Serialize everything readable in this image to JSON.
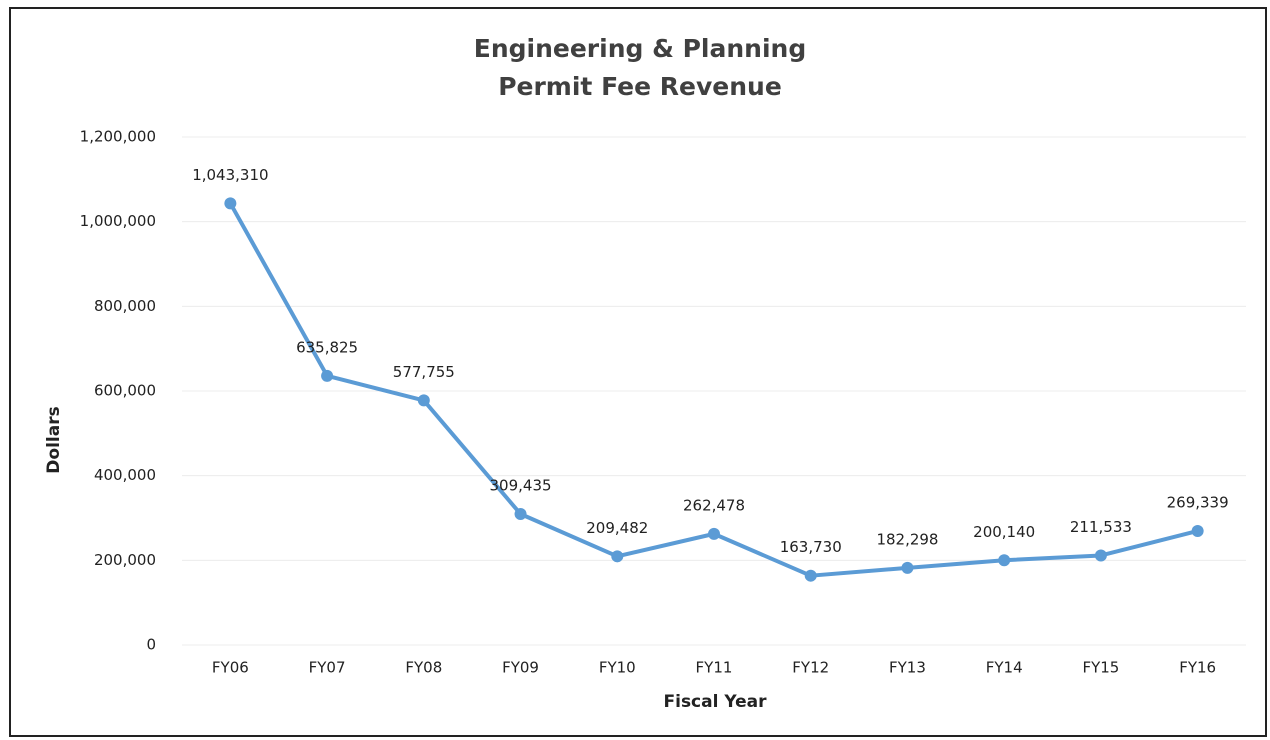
{
  "chart_data": {
    "type": "line",
    "title": [
      "Engineering & Planning",
      "Permit Fee Revenue"
    ],
    "x_label": "Fiscal Year",
    "y_label": "Dollars",
    "categories": [
      "FY06",
      "FY07",
      "FY08",
      "FY09",
      "FY10",
      "FY11",
      "FY12",
      "FY13",
      "FY14",
      "FY15",
      "FY16"
    ],
    "values": [
      1043310,
      635825,
      577755,
      309435,
      209482,
      262478,
      163730,
      182298,
      200140,
      211533,
      269339
    ],
    "value_labels": [
      "1,043,310",
      "635,825",
      "577,755",
      "309,435",
      "209,482",
      "262,478",
      "163,730",
      "182,298",
      "200,140",
      "211,533",
      "269,339"
    ],
    "color": "#5b9bd5",
    "ylim": [
      0,
      1200000
    ],
    "yticks": [
      0,
      {
        "value": 200000,
        "label": "200,000"
      },
      {
        "value": 400000,
        "label": "400,000"
      },
      {
        "value": 600000,
        "label": "600,000"
      },
      {
        "value": 800000,
        "label": "800,000"
      },
      {
        "value": 1000000,
        "label": "1,000,000"
      },
      {
        "value": 1200000,
        "label": "1,200,000"
      }
    ],
    "grid": true
  }
}
